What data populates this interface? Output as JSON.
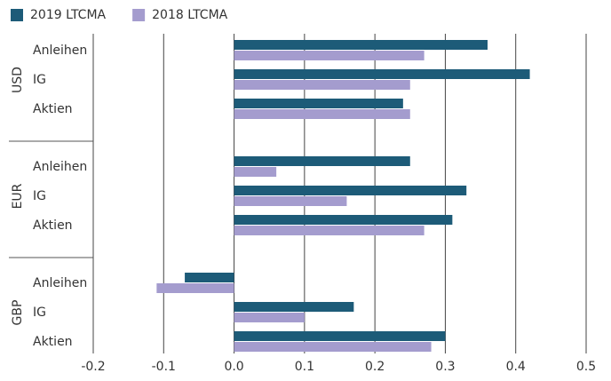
{
  "chart_data": {
    "type": "bar",
    "orientation": "horizontal",
    "groups": [
      "USD",
      "EUR",
      "GBP"
    ],
    "categories": [
      "Anleihen",
      "IG",
      "Aktien",
      "Anleihen",
      "IG",
      "Aktien",
      "Anleihen",
      "IG",
      "Aktien"
    ],
    "series": [
      {
        "name": "2019 LTCMA",
        "color": "#1d5b78",
        "values": [
          0.36,
          0.42,
          0.24,
          0.25,
          0.33,
          0.31,
          -0.07,
          0.17,
          0.3
        ]
      },
      {
        "name": "2018 LTCMA",
        "color": "#a49cce",
        "values": [
          0.27,
          0.25,
          0.25,
          0.06,
          0.16,
          0.27,
          -0.11,
          0.1,
          0.28
        ]
      }
    ],
    "xlim": [
      -0.2,
      0.5
    ],
    "xticks": [
      -0.2,
      -0.1,
      {
        "value": 0,
        "label": "0.0"
      },
      0.1,
      0.2,
      0.3,
      0.4,
      0.5
    ],
    "grid": true,
    "legend": "top-left"
  }
}
